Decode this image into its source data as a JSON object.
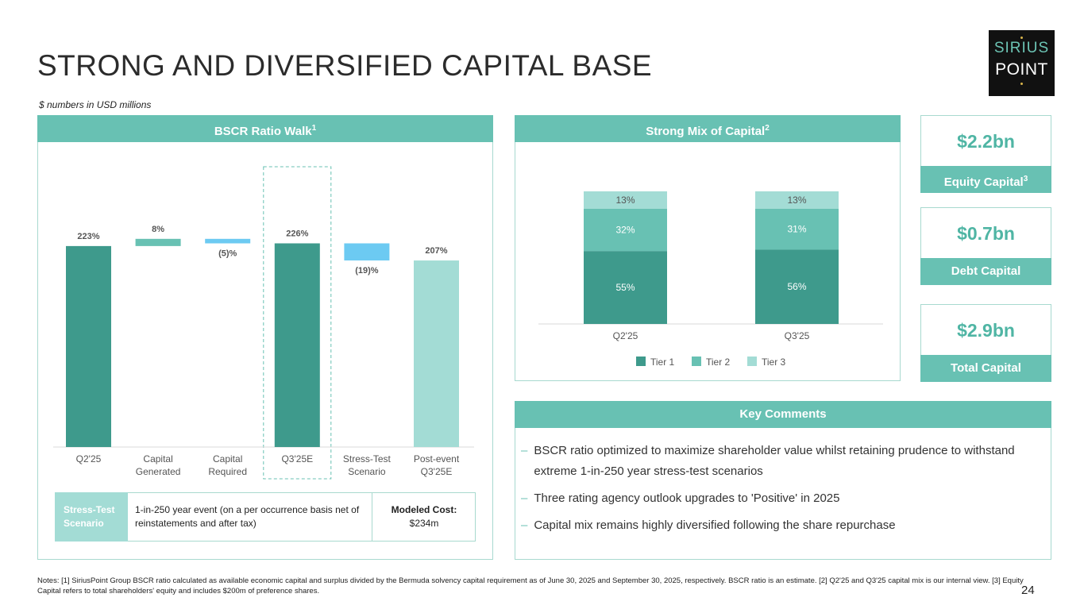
{
  "title": "STRONG AND DIVERSIFIED CAPITAL BASE",
  "subtitle": "$ numbers in USD millions",
  "logo": {
    "line1": "SIRIUS",
    "line2": "POINT"
  },
  "panels": {
    "bscr_title": "BSCR Ratio Walk",
    "bscr_sup": "1",
    "mix_title": "Strong Mix of Capital",
    "mix_sup": "2",
    "comments_title": "Key Comments"
  },
  "chart_data": [
    {
      "type": "bar",
      "subtype": "waterfall",
      "categories": [
        "Q2'25",
        "Capital Generated",
        "Capital Required",
        "Q3'25E",
        "Stress-Test Scenario",
        "Post-event Q3'25E"
      ],
      "category_lines": [
        [
          "Q2'25"
        ],
        [
          "Capital",
          "Generated"
        ],
        [
          "Capital",
          "Required"
        ],
        [
          "Q3'25E"
        ],
        [
          "Stress-Test",
          "Scenario"
        ],
        [
          "Post-event",
          "Q3'25E"
        ]
      ],
      "values": [
        223,
        8,
        -5,
        226,
        -19,
        207
      ],
      "value_labels": [
        "223%",
        "8%",
        "(5)%",
        "226%",
        "(19)%",
        "207%"
      ],
      "kinds": [
        "total",
        "delta",
        "delta",
        "total",
        "delta",
        "total"
      ],
      "highlighted_category": "Q3'25E",
      "colors": {
        "total": "#3e9a8c",
        "increase": "#68c1b3",
        "decrease": "#6ccaf2",
        "final": "#a3dcd5"
      }
    },
    {
      "type": "bar",
      "subtype": "stacked-percent",
      "categories": [
        "Q2'25",
        "Q3'25"
      ],
      "series": [
        {
          "name": "Tier 1",
          "values": [
            55,
            56
          ],
          "labels": [
            "55%",
            "56%"
          ],
          "color": "#3e9a8c"
        },
        {
          "name": "Tier 2",
          "values": [
            32,
            31
          ],
          "labels": [
            "32%",
            "31%"
          ],
          "color": "#68c1b3"
        },
        {
          "name": "Tier 3",
          "values": [
            13,
            13
          ],
          "labels": [
            "13%",
            "13%"
          ],
          "color": "#a3dcd5"
        }
      ],
      "legend": "bottom",
      "ylim": [
        0,
        100
      ]
    }
  ],
  "stress": {
    "label": "Stress-Test Scenario",
    "description": "1-in-250 year event (on a per occurrence basis net of reinstatements and after tax)",
    "cost_label": "Modeled Cost:",
    "cost_value": "$234m"
  },
  "metrics": [
    {
      "value": "$2.2bn",
      "label": "Equity Capital",
      "sup": "3"
    },
    {
      "value": "$0.7bn",
      "label": "Debt Capital",
      "sup": ""
    },
    {
      "value": "$2.9bn",
      "label": "Total Capital",
      "sup": ""
    }
  ],
  "comments": [
    "BSCR ratio optimized to maximize shareholder value whilst retaining prudence to withstand extreme 1-in-250 year stress-test scenarios",
    "Three rating agency outlook upgrades to 'Positive' in 2025",
    "Capital mix remains highly diversified following the share repurchase"
  ],
  "comment_dash": "–",
  "notes": "Notes: [1] SiriusPoint Group BSCR ratio calculated as available economic capital and surplus divided by the Bermuda solvency capital requirement as of June 30, 2025 and September 30, 2025, respectively. BSCR ratio is an estimate. [2] Q2'25 and Q3'25 capital mix is our internal view. [3] Equity Capital refers to total shareholders' equity and includes $200m of preference shares.",
  "page_number": "24"
}
